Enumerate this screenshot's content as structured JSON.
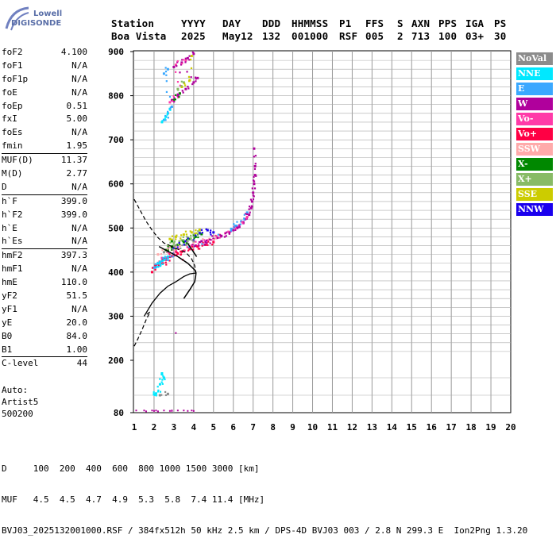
{
  "logo": {
    "line1": "Lowell",
    "line2": "DIGISONDE"
  },
  "header": {
    "row1": [
      "Station",
      "YYYY",
      "DAY",
      "DDD",
      "HHMMSS",
      "P1",
      "FFS",
      "S",
      "AXN",
      "PPS",
      "IGA",
      "PS"
    ],
    "row2": [
      "Boa Vista",
      "2025",
      "May12",
      "132",
      "001000",
      "RSF",
      "005",
      "2",
      "713",
      "100",
      "03+",
      "30"
    ]
  },
  "params": [
    {
      "name": "foF2",
      "value": "4.100"
    },
    {
      "name": "foF1",
      "value": "N/A"
    },
    {
      "name": "foF1p",
      "value": "N/A"
    },
    {
      "name": "foE",
      "value": "N/A"
    },
    {
      "name": "foEp",
      "value": "0.51"
    },
    {
      "name": "fxI",
      "value": "5.00"
    },
    {
      "name": "foEs",
      "value": "N/A"
    },
    {
      "name": "fmin",
      "value": "1.95",
      "sep": true
    },
    {
      "name": "MUF(D)",
      "value": "11.37"
    },
    {
      "name": "M(D)",
      "value": "2.77"
    },
    {
      "name": "D",
      "value": "N/A",
      "sep": true
    },
    {
      "name": "h`F",
      "value": "399.0"
    },
    {
      "name": "h`F2",
      "value": "399.0"
    },
    {
      "name": "h`E",
      "value": "N/A"
    },
    {
      "name": "h`Es",
      "value": "N/A",
      "sep": true
    },
    {
      "name": "hmF2",
      "value": "397.3"
    },
    {
      "name": "hmF1",
      "value": "N/A"
    },
    {
      "name": "hmE",
      "value": "110.0"
    },
    {
      "name": "yF2",
      "value": "51.5"
    },
    {
      "name": "yF1",
      "value": "N/A"
    },
    {
      "name": "yE",
      "value": "20.0"
    },
    {
      "name": "B0",
      "value": "84.0"
    },
    {
      "name": "B1",
      "value": "1.00",
      "sep": true
    },
    {
      "name": "C-level",
      "value": "44"
    }
  ],
  "auto": [
    "Auto:",
    "Artist5",
    "500200"
  ],
  "legend": [
    {
      "label": "NoVal",
      "color": "#8c8c8c"
    },
    {
      "label": "NNE",
      "color": "#00e8ff"
    },
    {
      "label": "E",
      "color": "#3aa8ff"
    },
    {
      "label": "W",
      "color": "#b0009c"
    },
    {
      "label": "Vo-",
      "color": "#ff3aa8"
    },
    {
      "label": "Vo+",
      "color": "#ff0044"
    },
    {
      "label": "SSW",
      "color": "#ffaaaa"
    },
    {
      "label": "X-",
      "color": "#008800"
    },
    {
      "label": "X+",
      "color": "#88bb66"
    },
    {
      "label": "SSE",
      "color": "#cccc00"
    },
    {
      "label": "NNW",
      "color": "#1a00ee"
    }
  ],
  "footer": {
    "d_row": "D     100  200  400  600  800 1000 1500 3000 [km]",
    "muf_row": "MUF   4.5  4.5  4.7  4.9  5.3  5.8  7.4 11.4 [MHz]",
    "file_row": "BVJ03_2025132001000.RSF / 384fx512h 50 kHz 2.5 km / DPS-4D BVJ03 003 / 2.8 N 299.3 E  Ion2Png 1.3.20"
  },
  "chart_data": {
    "type": "scatter",
    "x_ticks": [
      1,
      2,
      3,
      4,
      5,
      6,
      7,
      8,
      9,
      10,
      11,
      12,
      13,
      14,
      15,
      16,
      17,
      18,
      19,
      20
    ],
    "y_ticks": [
      80,
      200,
      300,
      400,
      500,
      600,
      700,
      800,
      900
    ],
    "xlim": [
      0.6,
      20.2
    ],
    "ylim": [
      80,
      900
    ],
    "grid": true,
    "series": [
      {
        "name": "W",
        "color": "#b0009c",
        "points": [
          [
            4.1,
            460
          ],
          [
            4.6,
            468
          ],
          [
            5.0,
            475
          ],
          [
            5.4,
            482
          ],
          [
            5.8,
            490
          ],
          [
            6.2,
            500
          ],
          [
            6.5,
            512
          ],
          [
            6.8,
            530
          ],
          [
            6.95,
            560
          ],
          [
            7.05,
            600
          ],
          [
            7.1,
            640
          ],
          [
            7.05,
            680
          ],
          [
            3.8,
            455
          ],
          [
            4.4,
            470
          ],
          [
            5.2,
            478
          ],
          [
            6.0,
            495
          ],
          [
            6.6,
            520
          ],
          [
            6.9,
            545
          ],
          [
            7.0,
            580
          ],
          [
            7.1,
            620
          ],
          [
            2.9,
            790
          ],
          [
            3.2,
            800
          ],
          [
            3.6,
            815
          ],
          [
            4.0,
            830
          ],
          [
            4.2,
            840
          ],
          [
            3.0,
            865
          ],
          [
            3.4,
            875
          ],
          [
            3.7,
            885
          ],
          [
            4.0,
            895
          ]
        ]
      },
      {
        "name": "Vo+",
        "color": "#ff0044",
        "points": [
          [
            2.3,
            420
          ],
          [
            2.6,
            428
          ],
          [
            2.9,
            436
          ],
          [
            3.2,
            442
          ],
          [
            3.5,
            448
          ],
          [
            3.8,
            452
          ],
          [
            4.2,
            458
          ],
          [
            4.6,
            462
          ],
          [
            5.0,
            468
          ],
          [
            1.9,
            400
          ],
          [
            2.1,
            415
          ],
          [
            2.5,
            430
          ],
          [
            3.0,
            440
          ],
          [
            3.4,
            446
          ]
        ]
      },
      {
        "name": "Vo-",
        "color": "#ff3aa8",
        "points": [
          [
            2.4,
            432
          ],
          [
            3.1,
            448
          ],
          [
            3.9,
            460
          ],
          [
            4.7,
            472
          ],
          [
            5.6,
            488
          ],
          [
            6.3,
            505
          ],
          [
            6.7,
            525
          ],
          [
            2.8,
            785
          ],
          [
            3.3,
            805
          ],
          [
            3.1,
            870
          ],
          [
            3.6,
            880
          ]
        ]
      },
      {
        "name": "E",
        "color": "#3aa8ff",
        "points": [
          [
            2.0,
            410
          ],
          [
            2.2,
            418
          ],
          [
            2.4,
            425
          ],
          [
            2.6,
            430
          ],
          [
            2.8,
            435
          ],
          [
            3.0,
            438
          ],
          [
            5.9,
            498
          ],
          [
            6.1,
            505
          ],
          [
            6.4,
            515
          ],
          [
            6.7,
            535
          ],
          [
            2.5,
            745
          ],
          [
            2.7,
            760
          ],
          [
            2.9,
            775
          ],
          [
            2.5,
            850
          ],
          [
            2.7,
            860
          ]
        ]
      },
      {
        "name": "NNE",
        "color": "#00e8ff",
        "points": [
          [
            2.1,
            412
          ],
          [
            2.3,
            420
          ],
          [
            2.5,
            428
          ],
          [
            2.7,
            433
          ],
          [
            2.4,
            740
          ],
          [
            2.6,
            752
          ],
          [
            2.8,
            770
          ],
          [
            2.0,
            122
          ],
          [
            2.1,
            124
          ],
          [
            2.3,
            145
          ],
          [
            2.4,
            170
          ],
          [
            2.5,
            160
          ],
          [
            2.3,
            120
          ]
        ]
      },
      {
        "name": "X-",
        "color": "#008800",
        "points": [
          [
            2.6,
            450
          ],
          [
            2.9,
            456
          ],
          [
            3.2,
            462
          ],
          [
            3.5,
            468
          ],
          [
            3.8,
            475
          ],
          [
            4.1,
            480
          ],
          [
            4.4,
            486
          ],
          [
            3.0,
            790
          ],
          [
            3.3,
            805
          ],
          [
            2.9,
            470
          ]
        ]
      },
      {
        "name": "X+",
        "color": "#88bb66",
        "points": [
          [
            2.7,
            460
          ],
          [
            3.0,
            466
          ],
          [
            3.4,
            472
          ],
          [
            3.7,
            478
          ],
          [
            4.0,
            484
          ],
          [
            4.3,
            490
          ],
          [
            3.2,
            815
          ],
          [
            3.5,
            830
          ]
        ]
      },
      {
        "name": "SSE",
        "color": "#cccc00",
        "points": [
          [
            2.8,
            475
          ],
          [
            3.1,
            480
          ],
          [
            3.5,
            485
          ],
          [
            3.9,
            490
          ],
          [
            4.3,
            496
          ],
          [
            3.4,
            820
          ],
          [
            3.8,
            835
          ],
          [
            3.9,
            890
          ]
        ]
      },
      {
        "name": "NNW",
        "color": "#1a00ee",
        "points": [
          [
            3.0,
            455
          ],
          [
            3.6,
            470
          ],
          [
            4.3,
            488
          ],
          [
            4.7,
            495
          ],
          [
            5.0,
            490
          ]
        ]
      },
      {
        "name": "SSW",
        "color": "#ffaaaa",
        "points": [
          [
            2.2,
            440
          ],
          [
            2.7,
            452
          ],
          [
            3.3,
            460
          ],
          [
            4.8,
            475
          ],
          [
            5.3,
            485
          ]
        ]
      },
      {
        "name": "NoVal",
        "color": "#8c8c8c",
        "points": [
          [
            2.5,
            445
          ],
          [
            3.0,
            458
          ],
          [
            3.6,
            462
          ],
          [
            4.0,
            470
          ],
          [
            2.3,
            120
          ],
          [
            2.7,
            123
          ]
        ]
      }
    ],
    "bottom_trace": [
      [
        1.1,
        85
      ],
      [
        1.5,
        85
      ],
      [
        1.9,
        85
      ],
      [
        2.1,
        85
      ],
      [
        2.5,
        85
      ],
      [
        2.9,
        85
      ],
      [
        3.2,
        85
      ],
      [
        3.5,
        85
      ],
      [
        3.9,
        85
      ],
      [
        1.6,
        83
      ],
      [
        2.2,
        83
      ],
      [
        2.8,
        84
      ],
      [
        3.7,
        84
      ]
    ],
    "trace_extra": [
      [
        3.1,
        262
      ],
      [
        4.0,
        84
      ],
      [
        2.0,
        84
      ],
      [
        2.9,
        84
      ]
    ],
    "profile_solid": [
      [
        3.5,
        340
      ],
      [
        3.8,
        360
      ],
      [
        4.05,
        378
      ],
      [
        4.1,
        390
      ],
      [
        4.12,
        398
      ],
      [
        4.05,
        405
      ],
      [
        3.7,
        420
      ],
      [
        3.2,
        435
      ],
      [
        2.8,
        445
      ],
      [
        2.5,
        452
      ],
      [
        2.25,
        458
      ]
    ],
    "profile_lower": [
      [
        1.5,
        300
      ],
      [
        1.9,
        330
      ],
      [
        2.3,
        352
      ],
      [
        2.7,
        368
      ],
      [
        3.1,
        378
      ],
      [
        3.5,
        390
      ],
      [
        3.8,
        396
      ],
      [
        4.12,
        398
      ]
    ],
    "profile_dash_upper": [
      [
        1.0,
        565
      ],
      [
        1.3,
        540
      ],
      [
        1.6,
        515
      ],
      [
        1.9,
        495
      ],
      [
        2.2,
        478
      ],
      [
        2.5,
        466
      ],
      [
        2.8,
        460
      ]
    ],
    "profile_dash_lower": [
      [
        1.0,
        232
      ],
      [
        1.2,
        250
      ],
      [
        1.4,
        270
      ],
      [
        1.6,
        292
      ],
      [
        1.8,
        310
      ],
      [
        1.5,
        300
      ]
    ],
    "profile_dash_right": [
      [
        2.8,
        460
      ],
      [
        3.2,
        452
      ],
      [
        3.6,
        445
      ],
      [
        3.9,
        430
      ],
      [
        4.05,
        415
      ],
      [
        4.12,
        398
      ]
    ]
  }
}
